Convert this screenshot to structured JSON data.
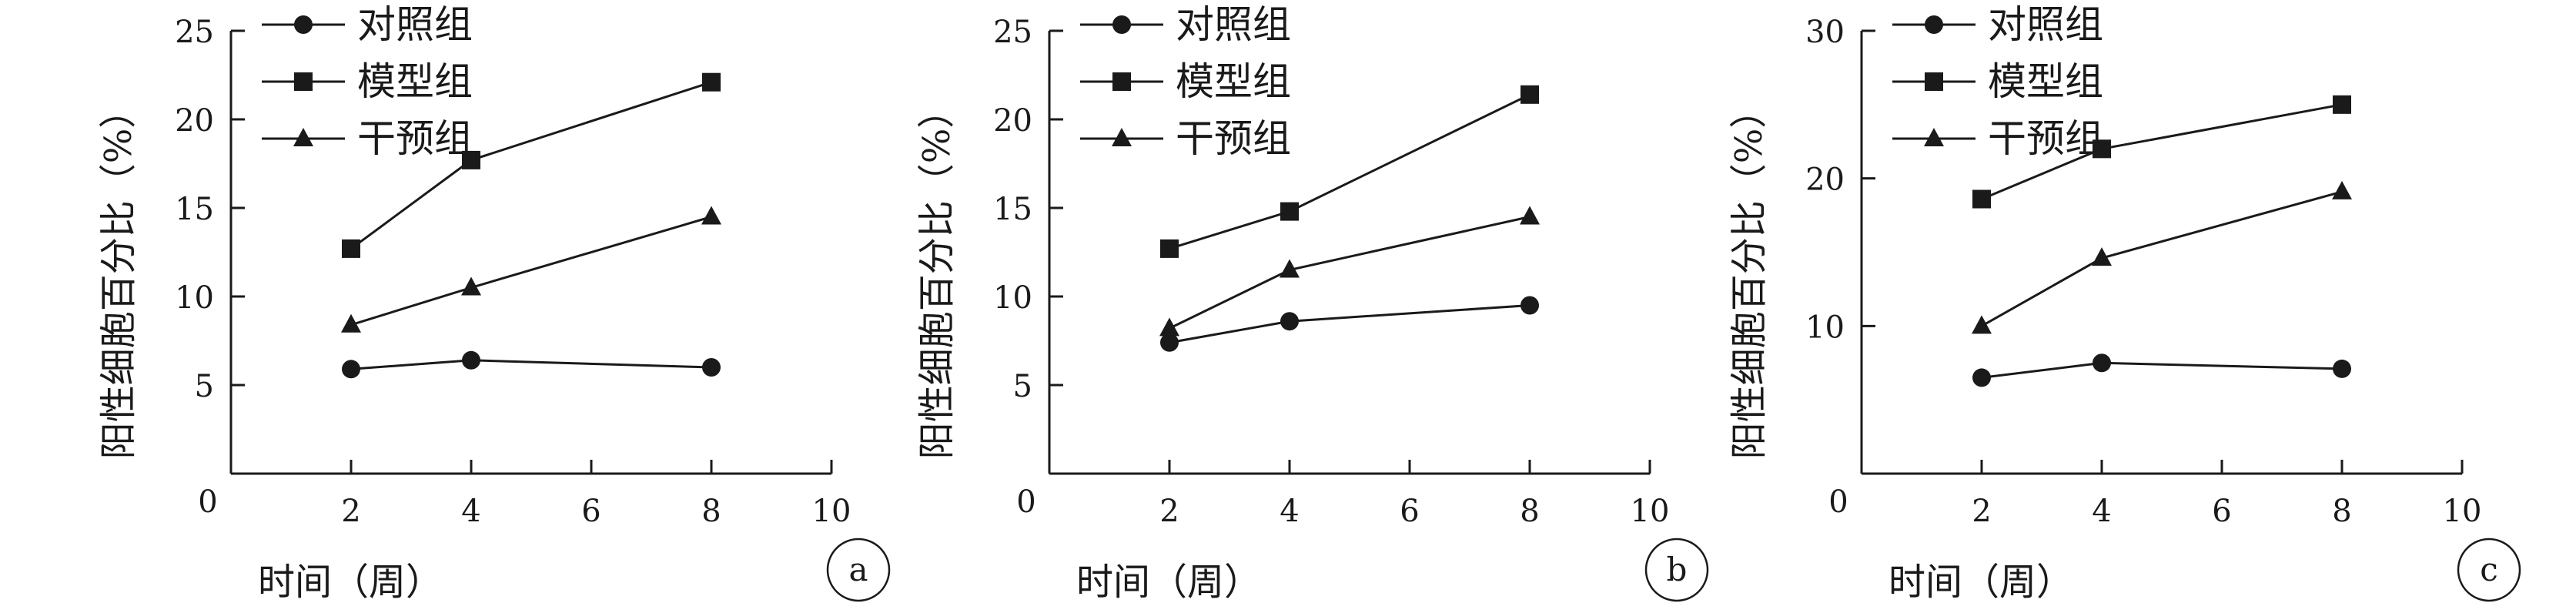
{
  "chart_data": [
    {
      "type": "line",
      "panel_label": "a",
      "xlabel": "时间（周）",
      "ylabel": "阳性细胞百分比（%）",
      "x_origin_label": "0",
      "xlim": [
        0,
        10
      ],
      "ylim": [
        0,
        25
      ],
      "xticks": [
        2,
        4,
        6,
        8,
        10
      ],
      "yticks": [
        5,
        10,
        15,
        20,
        25
      ],
      "legend_position": "top-left",
      "grid": false,
      "x": [
        2,
        4,
        8
      ],
      "series": [
        {
          "name": "对照组",
          "marker": "circle",
          "values": [
            5.9,
            6.4,
            6.0
          ]
        },
        {
          "name": "模型组",
          "marker": "square",
          "values": [
            12.7,
            17.7,
            22.1
          ]
        },
        {
          "name": "干预组",
          "marker": "triangle",
          "values": [
            8.4,
            10.5,
            14.5
          ]
        }
      ]
    },
    {
      "type": "line",
      "panel_label": "b",
      "xlabel": "时间（周）",
      "ylabel": "阳性细胞百分比（%）",
      "x_origin_label": "0",
      "xlim": [
        0,
        10
      ],
      "ylim": [
        0,
        25
      ],
      "xticks": [
        2,
        4,
        6,
        8,
        10
      ],
      "yticks": [
        5,
        10,
        15,
        20,
        25
      ],
      "legend_position": "top-left",
      "grid": false,
      "x": [
        2,
        4,
        8
      ],
      "series": [
        {
          "name": "对照组",
          "marker": "circle",
          "values": [
            7.4,
            8.6,
            9.5
          ]
        },
        {
          "name": "模型组",
          "marker": "square",
          "values": [
            12.7,
            14.8,
            21.4
          ]
        },
        {
          "name": "干预组",
          "marker": "triangle",
          "values": [
            8.2,
            11.5,
            14.5
          ]
        }
      ]
    },
    {
      "type": "line",
      "panel_label": "c",
      "xlabel": "时间（周）",
      "ylabel": "阳性细胞百分比（%）",
      "x_origin_label": "0",
      "xlim": [
        0,
        10
      ],
      "ylim": [
        0,
        30
      ],
      "xticks": [
        2,
        4,
        6,
        8,
        10
      ],
      "yticks": [
        10,
        20,
        30
      ],
      "legend_position": "top-left",
      "grid": false,
      "x": [
        2,
        4,
        8
      ],
      "series": [
        {
          "name": "对照组",
          "marker": "circle",
          "values": [
            6.5,
            7.5,
            7.1
          ]
        },
        {
          "name": "模型组",
          "marker": "square",
          "values": [
            18.6,
            22.0,
            25.0
          ]
        },
        {
          "name": "干预组",
          "marker": "triangle",
          "values": [
            10.0,
            14.6,
            19.1
          ]
        }
      ]
    }
  ]
}
